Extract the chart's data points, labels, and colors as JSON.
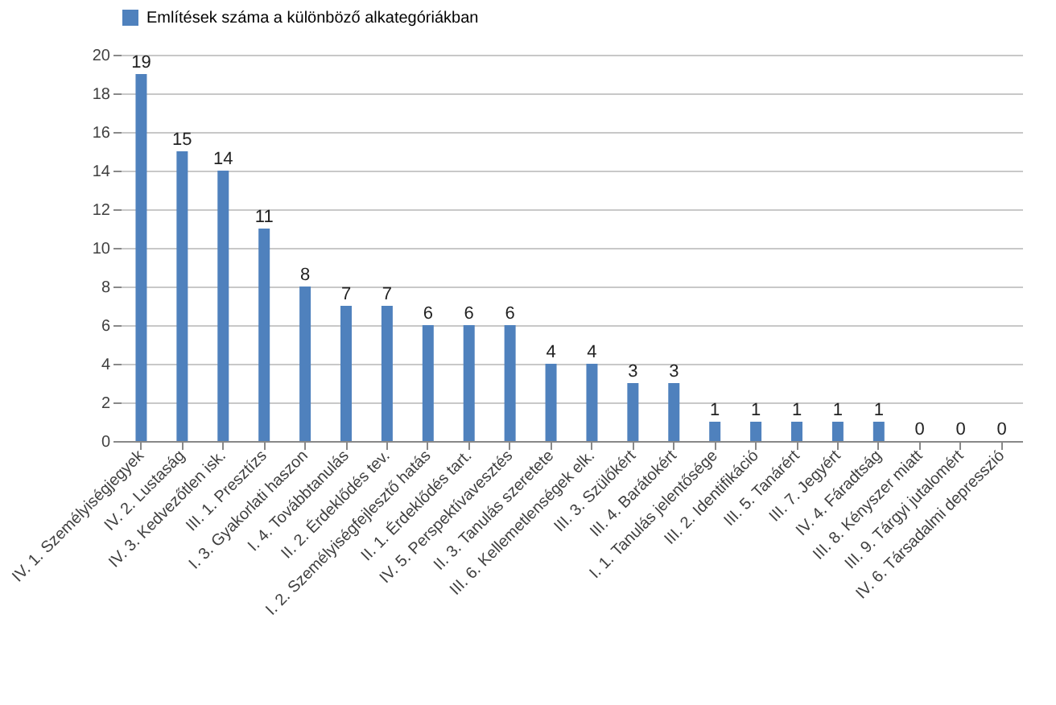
{
  "chart_data": {
    "type": "bar",
    "categories": [
      "IV. 1. Személyiségjegyek",
      "IV. 2. Lustaság",
      "IV. 3. Kedvezőtlen isk.",
      "III. 1. Presztízs",
      "I. 3. Gyakorlati haszon",
      "I. 4. Továbbtanulás",
      "II. 2. Érdeklődés tev.",
      "I. 2. Személyiségfejlesztő hatás",
      "II. 1. Érdeklődés tart.",
      "IV. 5. Perspektívavesztés",
      "II. 3. Tanulás szeretete",
      "III. 6. Kellemetlenségek elk.",
      "III. 3. Szülőkért",
      "III. 4. Barátokért",
      "I. 1. Tanulás jelentősége",
      "III. 2. Identifikáció",
      "III. 5. Tanárért",
      "III. 7. Jegyért",
      "IV. 4. Fáradtság",
      "III. 8. Kényszer miatt",
      "III. 9. Tárgyi jutalomért",
      "IV. 6. Társadalmi depresszió"
    ],
    "series": [
      {
        "name": "Említések száma a különböző alkategóriákban",
        "color": "#4f81bd",
        "values": [
          19,
          15,
          14,
          11,
          8,
          7,
          7,
          6,
          6,
          6,
          4,
          4,
          3,
          3,
          1,
          1,
          1,
          1,
          1,
          0,
          0,
          0
        ]
      }
    ],
    "ylim": [
      0,
      20
    ],
    "yticks": [
      0,
      2,
      4,
      6,
      8,
      10,
      12,
      14,
      16,
      18,
      20
    ],
    "grid": "y",
    "legend": "top",
    "data_labels": true
  }
}
